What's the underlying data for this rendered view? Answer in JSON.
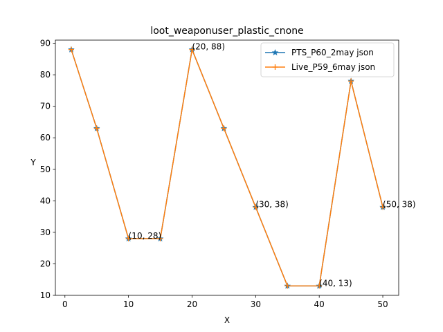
{
  "chart_data": {
    "type": "line",
    "title": "loot_weaponuser_plastic_cnone",
    "xlabel": "X",
    "ylabel": "Y",
    "xlim": [
      -1.5,
      52.5
    ],
    "ylim": [
      10,
      91
    ],
    "xticks": [
      0,
      10,
      20,
      30,
      40,
      50
    ],
    "yticks": [
      10,
      20,
      30,
      40,
      50,
      60,
      70,
      80,
      90
    ],
    "grid": false,
    "legend_position": "top-right",
    "x": [
      1,
      5,
      10,
      15,
      20,
      25,
      30,
      35,
      40,
      45,
      50
    ],
    "series": [
      {
        "name": "PTS_P60_2may json",
        "color": "#1f77b4",
        "marker": "star",
        "values": [
          88,
          63,
          28,
          28,
          88,
          63,
          38,
          13,
          13,
          78,
          38
        ]
      },
      {
        "name": "Live_P59_6may json",
        "color": "#ff7f0e",
        "marker": "plus",
        "values": [
          88,
          63,
          28,
          28,
          88,
          63,
          38,
          13,
          13,
          78,
          38
        ]
      }
    ],
    "annotations": [
      {
        "text": "(10, 28)",
        "x": 10,
        "y": 28
      },
      {
        "text": "(20, 88)",
        "x": 20,
        "y": 88
      },
      {
        "text": "(30, 38)",
        "x": 30,
        "y": 38
      },
      {
        "text": "(40, 13)",
        "x": 40,
        "y": 13
      },
      {
        "text": "(50, 38)",
        "x": 50,
        "y": 38
      }
    ]
  }
}
